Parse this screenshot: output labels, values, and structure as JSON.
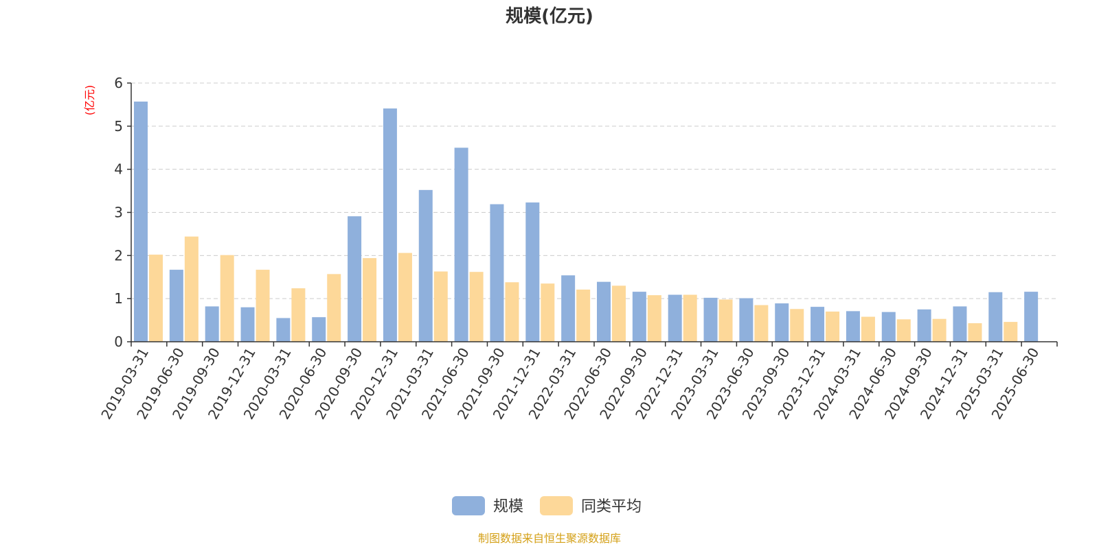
{
  "chart_data": {
    "type": "bar",
    "title": "规模(亿元)",
    "ylabel": "(亿元)",
    "xlabel": "",
    "ylim": [
      0,
      6
    ],
    "yticks": [
      0,
      1,
      2,
      3,
      4,
      5,
      6
    ],
    "grid": true,
    "legend_position": "bottom-center",
    "categories": [
      "2019-03-31",
      "2019-06-30",
      "2019-09-30",
      "2019-12-31",
      "2020-03-31",
      "2020-06-30",
      "2020-09-30",
      "2020-12-31",
      "2021-03-31",
      "2021-06-30",
      "2021-09-30",
      "2021-12-31",
      "2022-03-31",
      "2022-06-30",
      "2022-09-30",
      "2022-12-31",
      "2023-03-31",
      "2023-06-30",
      "2023-09-30",
      "2023-12-31",
      "2024-03-31",
      "2024-06-30",
      "2024-09-30",
      "2024-12-31",
      "2025-03-31",
      "2025-06-30"
    ],
    "series": [
      {
        "name": "规模",
        "color": "#8fb0dc",
        "values": [
          5.57,
          1.67,
          0.82,
          0.8,
          0.55,
          0.57,
          2.91,
          5.41,
          3.52,
          4.5,
          3.19,
          3.23,
          1.54,
          1.39,
          1.16,
          1.09,
          1.02,
          1.01,
          0.89,
          0.81,
          0.71,
          0.69,
          0.75,
          0.82,
          1.15,
          1.16
        ]
      },
      {
        "name": "同类平均",
        "color": "#fdd899",
        "values": [
          2.02,
          2.44,
          2.01,
          1.67,
          1.24,
          1.57,
          1.94,
          2.06,
          1.63,
          1.62,
          1.38,
          1.35,
          1.21,
          1.3,
          1.08,
          1.09,
          0.98,
          0.85,
          0.76,
          0.7,
          0.58,
          0.52,
          0.53,
          0.43,
          0.46,
          null
        ]
      }
    ]
  },
  "footer": {
    "source": "制图数据来自恒生聚源数据库"
  }
}
